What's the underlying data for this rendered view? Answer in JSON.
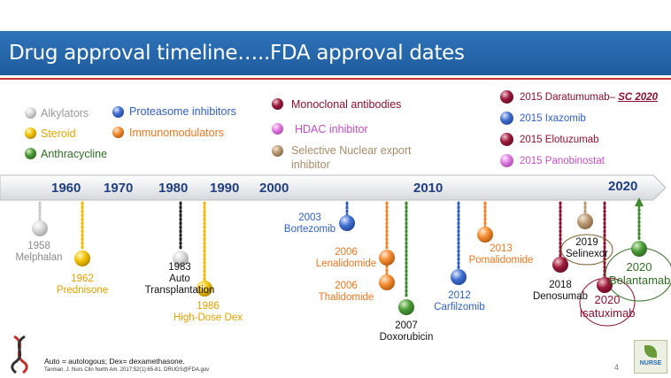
{
  "title": "Drug approval timeline…..FDA approval dates",
  "legend": {
    "alkylators": "Alkylators",
    "steroid": "Steroid",
    "anthracycline": "Anthracycline",
    "proteasome": "Proteasome inhibitors",
    "immunomodulators": "Immunomodulators",
    "monoclonal": "Monoclonal antibodies",
    "hdac": "HDAC inhibitor",
    "sne_1": "Selective Nuclear export",
    "sne_2": "inhibitor"
  },
  "approvals_2015": {
    "dara_prefix": "2015 Daratumumab– ",
    "dara_sc": "SC 2020",
    "ixazomib": "2015 Ixazomib",
    "elotuzumab": "2015 Elotuzumab",
    "panobinostat": "2015 Panobinostat"
  },
  "years": [
    "1960",
    "1970",
    "1980",
    "1990",
    "2000",
    "2010",
    "2020"
  ],
  "events": {
    "melphalan_year": "1958",
    "melphalan_name": "Melphalan",
    "prednisone_year": "1962",
    "prednisone_name": "Prednisone",
    "auto_year": "1983",
    "auto_l1": "Auto",
    "auto_l2": "Transplantation",
    "dex_year": "1986",
    "dex_name": "High-Dose Dex",
    "bortezomib_year": "2003",
    "bortezomib_name": "Bortezomib",
    "lenalidomide_year": "2006",
    "lenalidomide_name": "Lenalidomide",
    "thalidomide_year": "2006",
    "thalidomide_name": "Thalidomide",
    "doxorubicin_year": "2007",
    "doxorubicin_name": "Doxorubicin",
    "carfilzomib_year": "2012",
    "carfilzomib_name": "Carfilzomib",
    "pomalidomide_year": "2013",
    "pomalidomide_name": "Pomalidomide",
    "denosumab_year": "2018",
    "denosumab_name": "Denosumab",
    "selinexor_year": "2019",
    "selinexor_name": "Selinexor",
    "isatuximab_year": "2020",
    "isatuximab_name": "Isatuximab",
    "belantamab_year": "2020",
    "belantamab_name": "Belantamab"
  },
  "footer": {
    "note": "Auto = autologous; Dex= dexamethasone.",
    "citation": "Tanman, J. Nurs Clin North Am. 2017;52(1):65-81. DRUGS@FDA.gov",
    "page": "4",
    "logo_text": "NURSE"
  },
  "colors": {
    "alkylator": "#b5b5b5",
    "steroid": "#f2b800",
    "anthracycline": "#3d8a2c",
    "proteasome": "#2f5fbf",
    "immunomodulator": "#f0822a",
    "monoclonal": "#8a1030",
    "hdac": "#d874d6",
    "sne": "#b89870",
    "year_label": "#1f3f80",
    "banner": "#2a6db3"
  }
}
